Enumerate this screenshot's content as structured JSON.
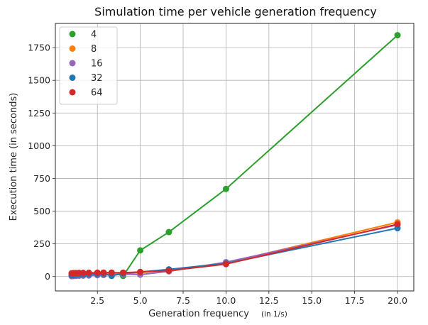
{
  "chart_data": {
    "type": "line",
    "title": "Simulation time per vehicle generation frequency",
    "xlabel": "Generation frequency",
    "xlabel_unit": "(in 1/s)",
    "ylabel": "Execution time (in seconds)",
    "xlim": [
      0.05,
      20.95
    ],
    "ylim": [
      -110,
      1935
    ],
    "xticks": [
      2.5,
      5.0,
      7.5,
      10.0,
      12.5,
      15.0,
      17.5,
      20.0
    ],
    "xtick_labels": [
      "2.5",
      "5.0",
      "7.5",
      "10.0",
      "12.5",
      "15.0",
      "17.5",
      "20.0"
    ],
    "yticks": [
      0,
      250,
      500,
      750,
      1000,
      1250,
      1500,
      1750
    ],
    "ytick_labels": [
      "0",
      "250",
      "500",
      "750",
      "1000",
      "1250",
      "1500",
      "1750"
    ],
    "grid": true,
    "legend_position": "top-left",
    "x": [
      1.0,
      1.11,
      1.25,
      1.43,
      1.67,
      2.0,
      2.5,
      2.86,
      3.33,
      4.0,
      5.0,
      6.67,
      10.0,
      20.0
    ],
    "series": [
      {
        "name": "4",
        "color": "#2ca02c",
        "values": [
          5,
          8,
          10,
          12,
          15,
          18,
          25,
          30,
          30,
          5,
          200,
          340,
          670,
          1845
        ]
      },
      {
        "name": "8",
        "color": "#ff7f0e",
        "values": [
          8,
          10,
          12,
          14,
          16,
          18,
          20,
          22,
          24,
          20,
          30,
          50,
          105,
          415
        ]
      },
      {
        "name": "16",
        "color": "#9467bd",
        "values": [
          3,
          4,
          5,
          6,
          7,
          8,
          10,
          12,
          15,
          18,
          15,
          40,
          110,
          395
        ]
      },
      {
        "name": "32",
        "color": "#1f77b4",
        "values": [
          10,
          12,
          14,
          16,
          17,
          18,
          20,
          22,
          5,
          25,
          35,
          55,
          100,
          370
        ]
      },
      {
        "name": "64",
        "color": "#d62728",
        "values": [
          25,
          26,
          27,
          28,
          28,
          29,
          30,
          30,
          30,
          30,
          35,
          45,
          95,
          400
        ]
      }
    ]
  }
}
